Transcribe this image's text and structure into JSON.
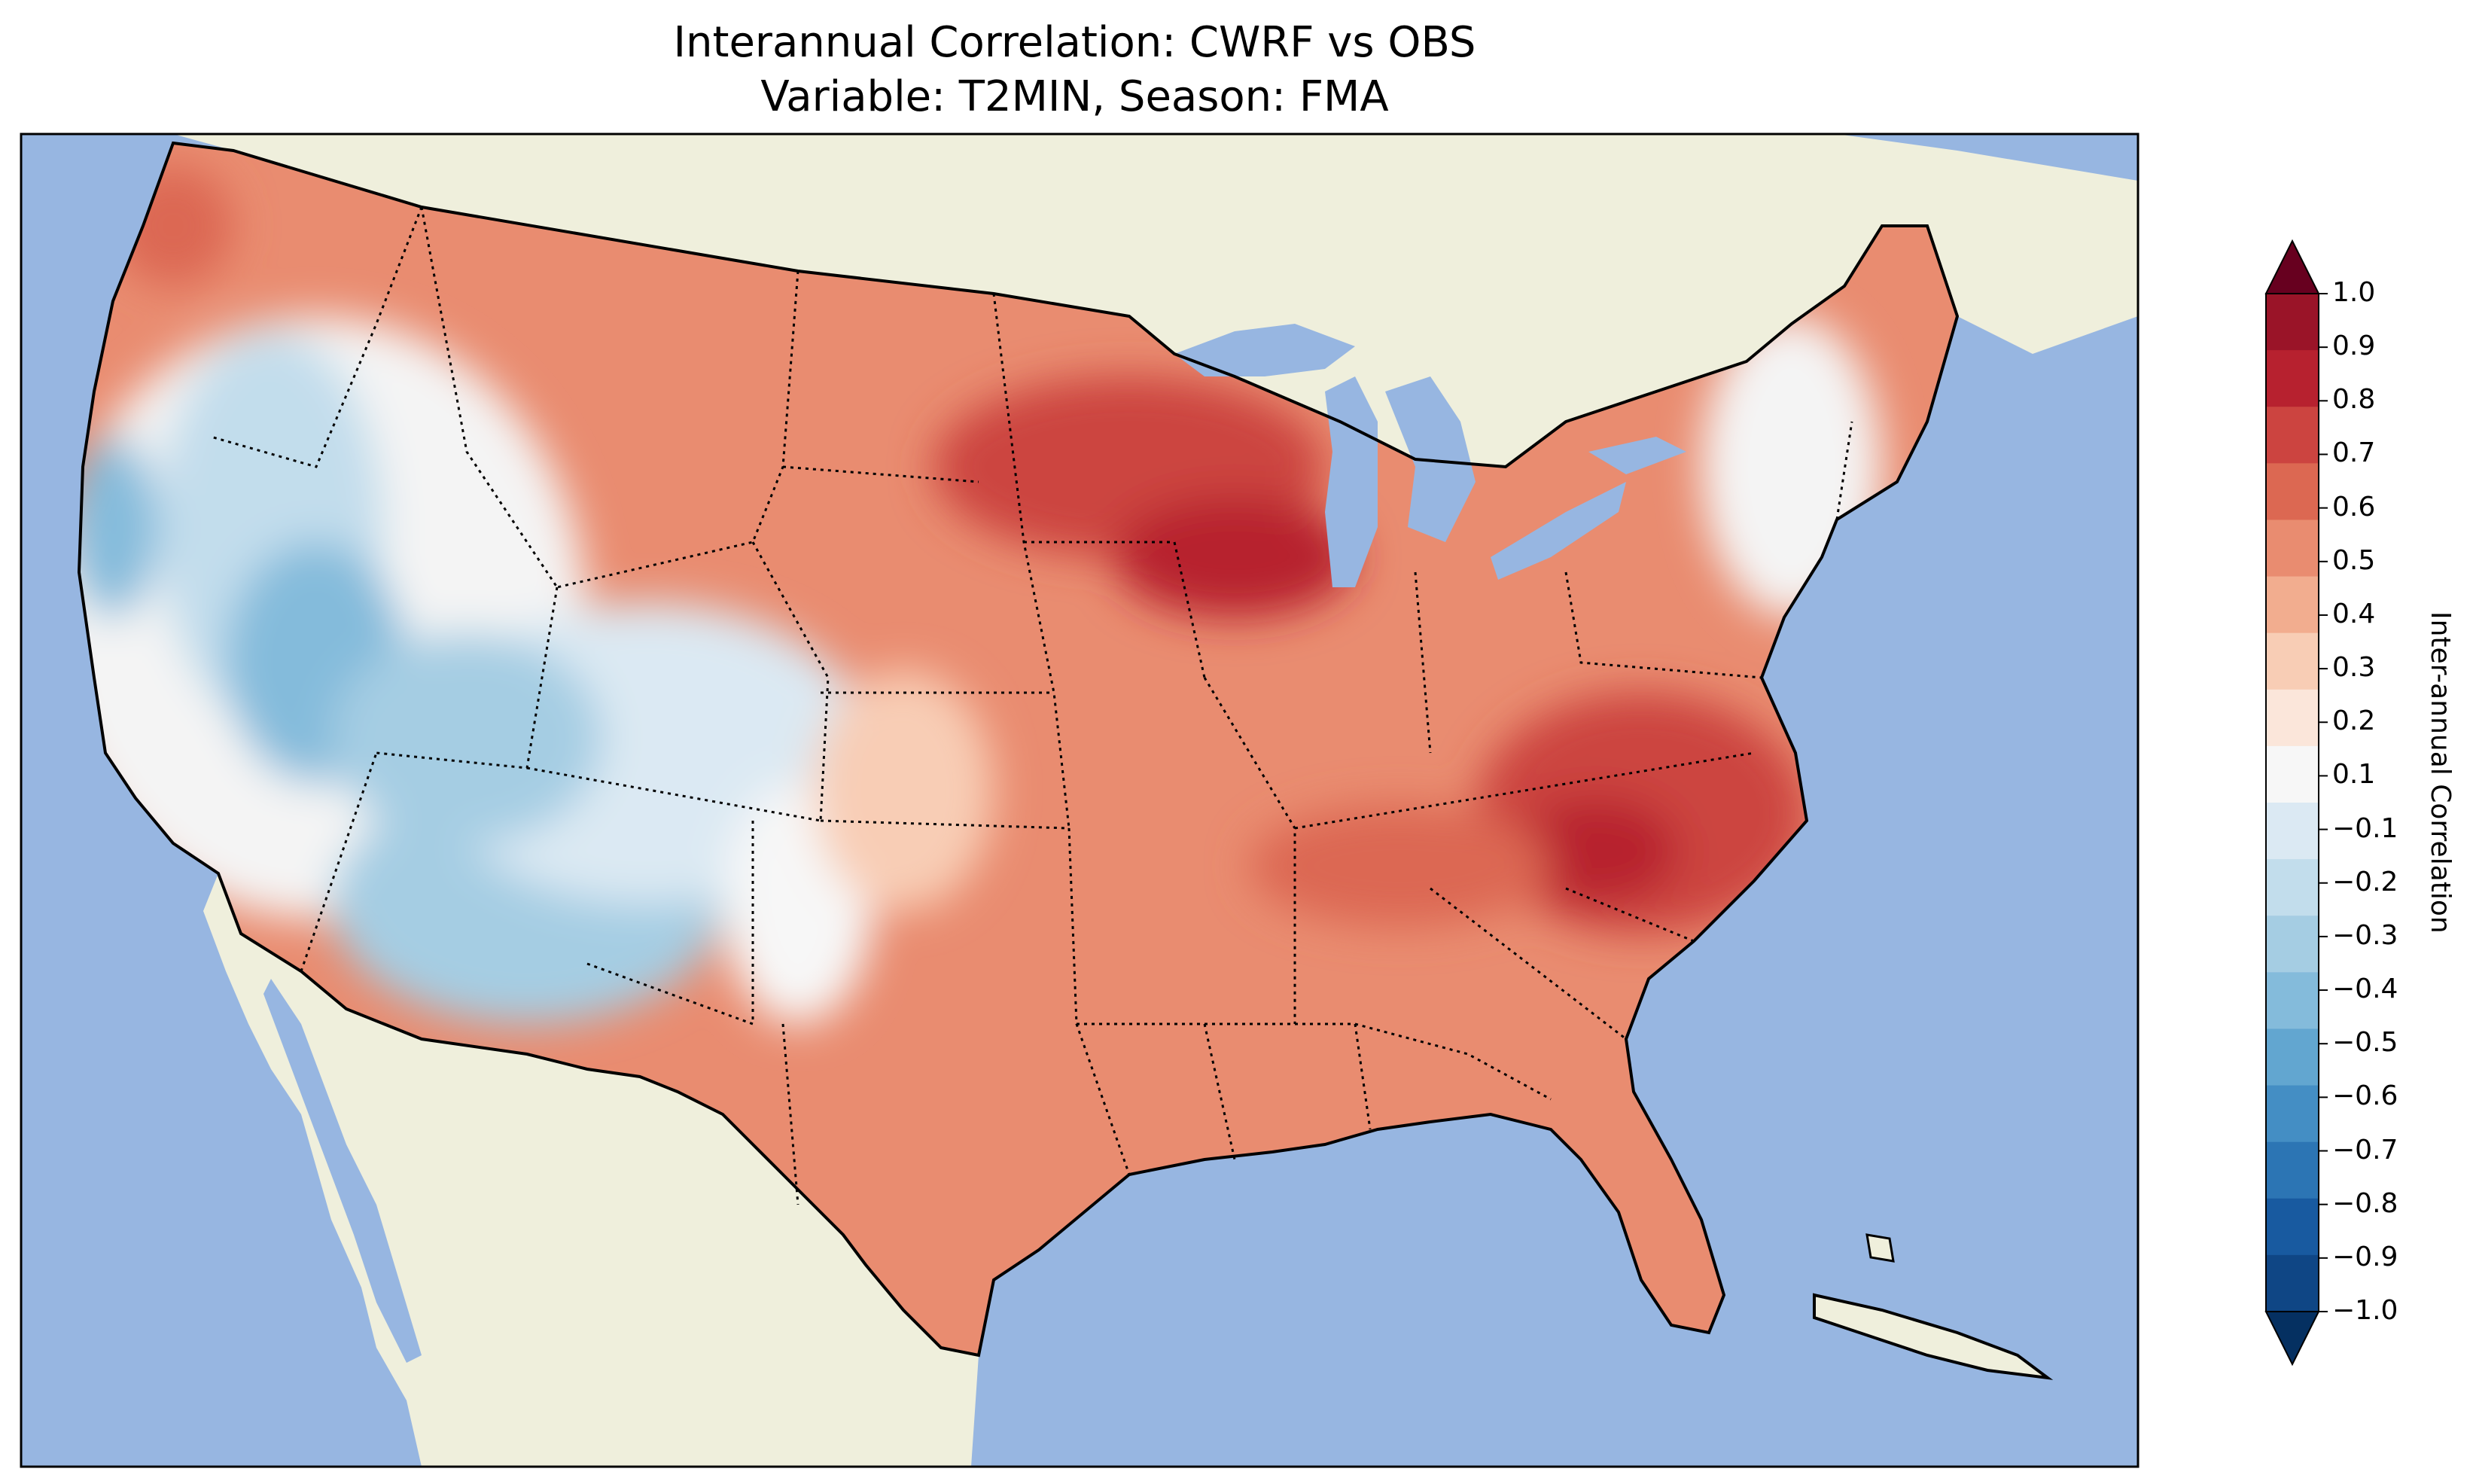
{
  "title_line1": "Interannual Correlation: CWRF vs OBS",
  "title_line2": "Variable: T2MIN, Season: FMA",
  "colorbar": {
    "label": "Inter-annual Correlation",
    "ticks": [
      "1.0",
      "0.9",
      "0.8",
      "0.7",
      "0.6",
      "0.5",
      "0.4",
      "0.3",
      "0.2",
      "0.1",
      "−0.1",
      "−0.2",
      "−0.3",
      "−0.4",
      "−0.5",
      "−0.6",
      "−0.7",
      "−0.8",
      "−0.9",
      "−1.0"
    ],
    "colors_top_to_bottom": [
      "#9a1428",
      "#b7212f",
      "#cc4440",
      "#dc6852",
      "#e98c70",
      "#f2ad8f",
      "#f8cdb5",
      "#fbe6da",
      "#f7f7f7",
      "#dbe9f3",
      "#c2ddec",
      "#a5cde3",
      "#84bbdb",
      "#62a6d0",
      "#448ec4",
      "#2c75b4",
      "#185aa0",
      "#0f4685"
    ],
    "over_color": "#67001f",
    "under_color": "#053061"
  },
  "colors": {
    "ocean": "#97b6e1",
    "land": "#efefdc",
    "border": "#000000"
  }
}
